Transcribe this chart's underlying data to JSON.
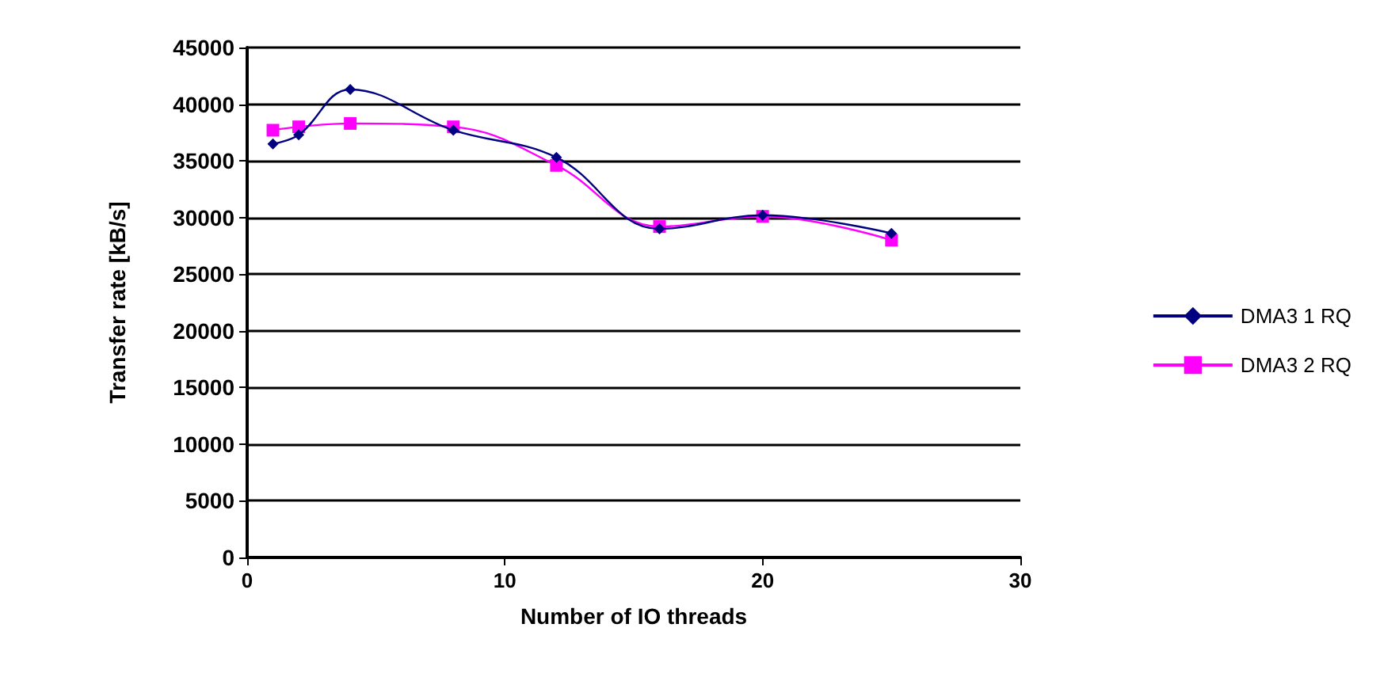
{
  "chart_data": {
    "type": "line",
    "xlabel": "Number of IO threads",
    "ylabel": "Transfer rate [kB/s]",
    "x": [
      1,
      2,
      4,
      8,
      12,
      16,
      20,
      25
    ],
    "series": [
      {
        "name": "DMA3 1 RQ",
        "color": "#000080",
        "marker": "diamond",
        "values": [
          36500,
          37300,
          41300,
          37700,
          35300,
          29000,
          30200,
          28600
        ]
      },
      {
        "name": "DMA3 2 RQ",
        "color": "#ff00ff",
        "marker": "square",
        "values": [
          37700,
          38000,
          38300,
          38000,
          34600,
          29200,
          30100,
          28000
        ]
      }
    ],
    "xlim": [
      0,
      30
    ],
    "xticks": [
      0,
      10,
      20,
      30
    ],
    "ylim": [
      0,
      45000
    ],
    "yticks": [
      0,
      5000,
      10000,
      15000,
      20000,
      25000,
      30000,
      35000,
      40000,
      45000
    ],
    "grid": "y",
    "legend": "right"
  }
}
